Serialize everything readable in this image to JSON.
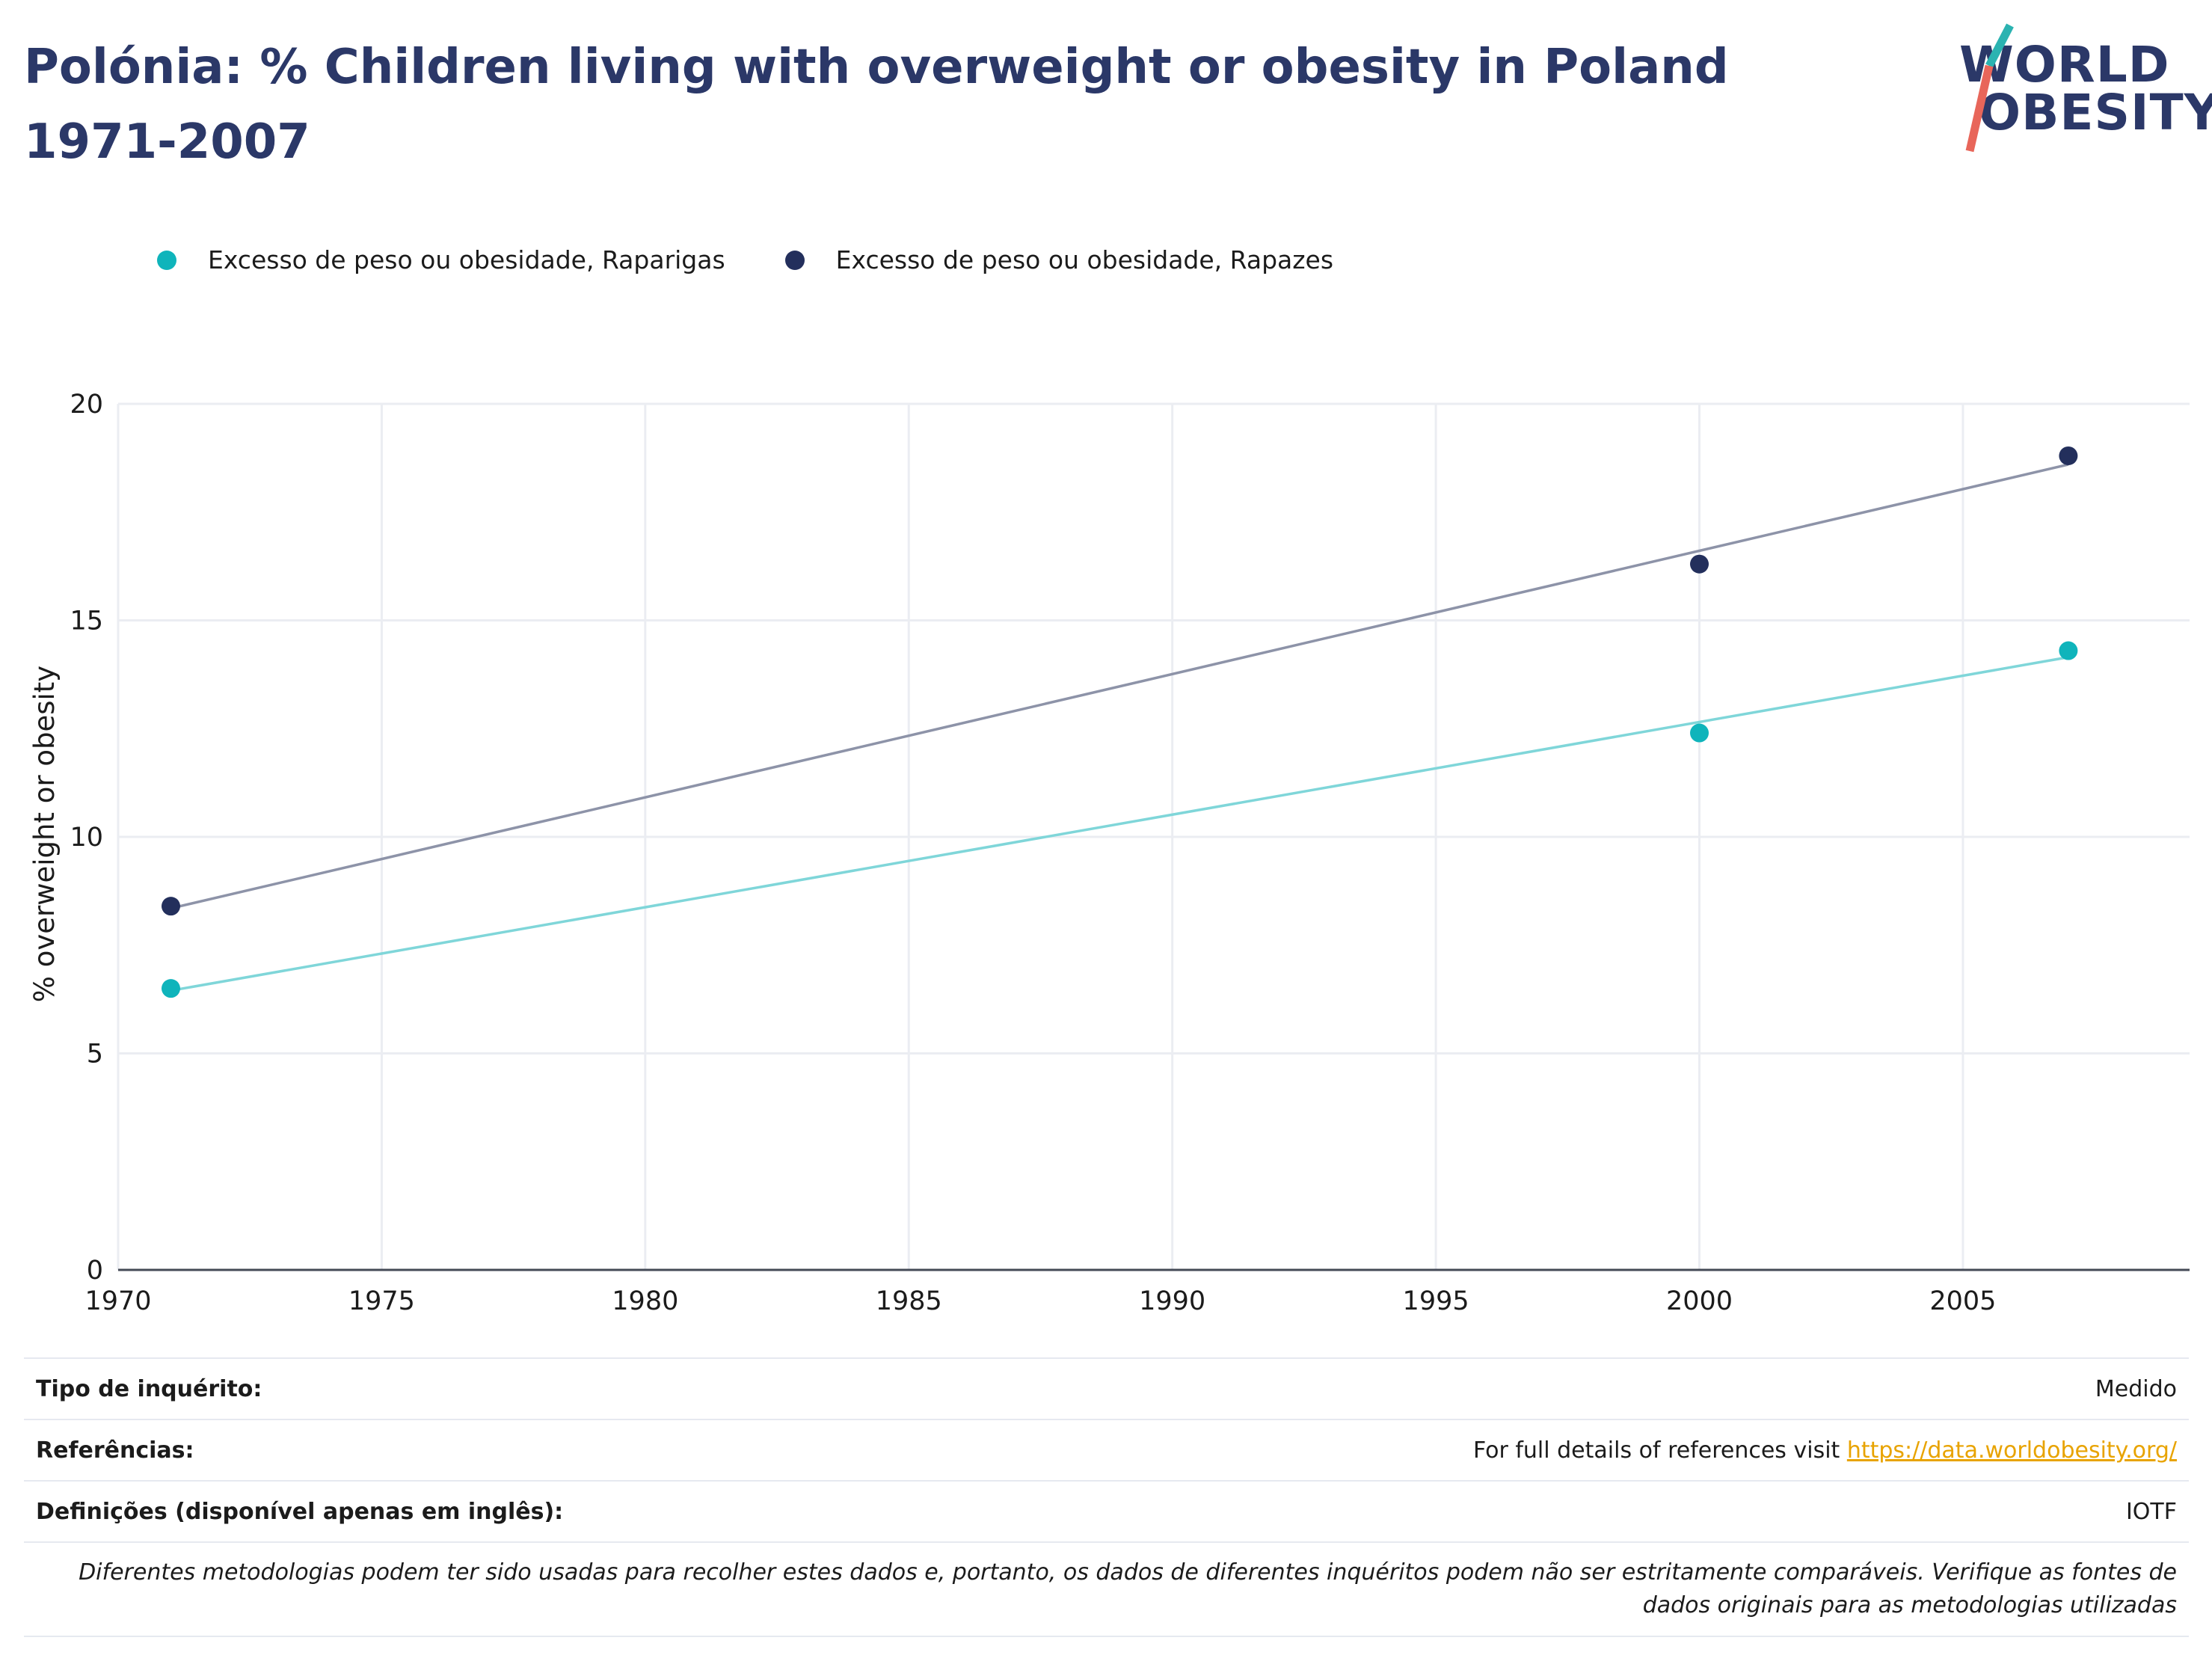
{
  "header": {
    "title": "Polónia: % Children living with overweight or obesity in Poland 1971-2007"
  },
  "logo": {
    "line1": "WORLD",
    "line2": "OBESITY",
    "colors": {
      "text": "#2b3868",
      "slash_top": "#2bb3b1",
      "slash_bottom": "#e8665a"
    }
  },
  "legend": {
    "items": [
      {
        "label": "Excesso de peso ou obesidade, Raparigas",
        "color": "#0fb4bb"
      },
      {
        "label": "Excesso de peso ou obesidade, Rapazes",
        "color": "#232f5c"
      }
    ]
  },
  "chart_data": {
    "type": "scatter",
    "title": "Polónia: % Children living with overweight or obesity in Poland 1971-2007",
    "xlabel": "",
    "ylabel": "% overweight or obesity",
    "xlim": [
      1970,
      2009.3
    ],
    "ylim": [
      0,
      20
    ],
    "xticks": [
      1970,
      1975,
      1980,
      1985,
      1990,
      1995,
      2000,
      2005
    ],
    "yticks": [
      0,
      5,
      10,
      15,
      20
    ],
    "grid": true,
    "legend_position": "top-left",
    "series": [
      {
        "name": "Excesso de peso ou obesidade, Raparigas",
        "color": "#0fb4bb",
        "trend_color": "#7fd6d9",
        "points": [
          {
            "x": 1971,
            "y": 6.5
          },
          {
            "x": 2000,
            "y": 12.4
          },
          {
            "x": 2007,
            "y": 14.3
          }
        ],
        "trendline": [
          {
            "x": 1971,
            "y": 6.45
          },
          {
            "x": 2007,
            "y": 14.15
          }
        ]
      },
      {
        "name": "Excesso de peso ou obesidade, Rapazes",
        "color": "#232f5c",
        "trend_color": "#8d93a8",
        "points": [
          {
            "x": 1971,
            "y": 8.4
          },
          {
            "x": 2000,
            "y": 16.3
          },
          {
            "x": 2007,
            "y": 18.8
          }
        ],
        "trendline": [
          {
            "x": 1971,
            "y": 8.35
          },
          {
            "x": 2007,
            "y": 18.6
          }
        ]
      }
    ]
  },
  "meta": {
    "survey_type_label": "Tipo de inquérito:",
    "survey_type_value": "Medido",
    "references_label": "Referências:",
    "references_text": "For full details of references visit ",
    "references_link": "https://data.worldobesity.org/",
    "definitions_label": "Definições (disponível apenas em inglês):",
    "definitions_value": "IOTF",
    "note": "Diferentes metodologias podem ter sido usadas para recolher estes dados e, portanto, os dados de diferentes inquéritos podem não ser estritamente comparáveis. Verifique as fontes de dados originais para as metodologias utilizadas"
  }
}
